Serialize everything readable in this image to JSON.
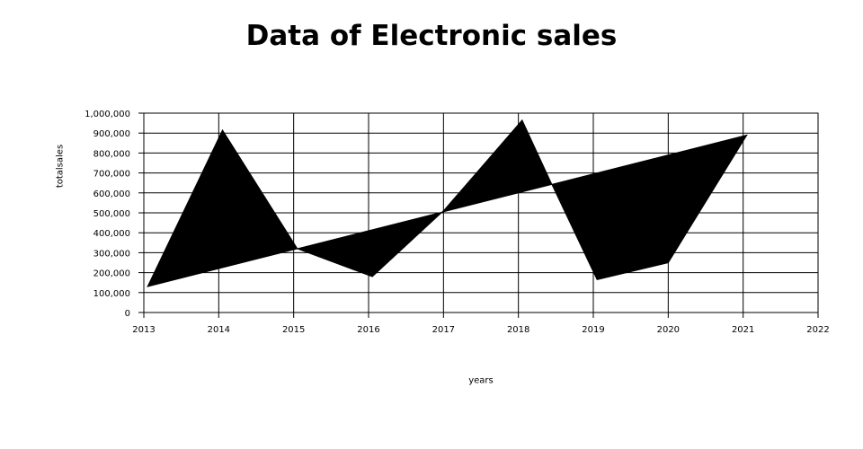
{
  "chart_data": {
    "type": "area",
    "title": "Data of Electronic sales",
    "xlabel": "years",
    "ylabel": "totalsales",
    "xlim": [
      2013,
      2022
    ],
    "ylim": [
      0,
      1000000
    ],
    "x_ticks": [
      "2013",
      "2014",
      "2015",
      "2016",
      "2017",
      "2018",
      "2019",
      "2020",
      "2021",
      "2022"
    ],
    "y_ticks": [
      "0",
      "100,000",
      "200,000",
      "300,000",
      "400,000",
      "500,000",
      "600,000",
      "700,000",
      "800,000",
      "900,000",
      "1,000,000"
    ],
    "x_tick_values": [
      2013,
      2014,
      2015,
      2016,
      2017,
      2018,
      2019,
      2020,
      2021,
      2022
    ],
    "y_tick_values": [
      0,
      100000,
      200000,
      300000,
      400000,
      500000,
      600000,
      700000,
      800000,
      900000,
      1000000
    ],
    "grid": true,
    "fill_color": "#000000",
    "grid_color": "#000000",
    "series": [
      {
        "points": [
          [
            2013.05,
            130000
          ],
          [
            2014.05,
            915000
          ],
          [
            2015.05,
            320000
          ],
          [
            2016.05,
            180000
          ],
          [
            2017.0,
            510000
          ],
          [
            2018.05,
            965000
          ],
          [
            2018.45,
            640000
          ],
          [
            2019.05,
            165000
          ],
          [
            2020.0,
            250000
          ],
          [
            2021.05,
            890000
          ]
        ],
        "baseline": [
          [
            2021.05,
            890000
          ],
          [
            2013.05,
            130000
          ]
        ]
      }
    ]
  }
}
